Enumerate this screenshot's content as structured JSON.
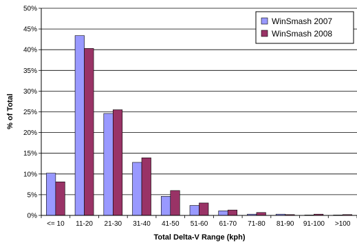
{
  "chart_data": {
    "type": "bar",
    "xlabel": "Total Delta-V Range (kph)",
    "ylabel": "% of Total",
    "ylim": [
      0,
      50
    ],
    "yticks": [
      "0%",
      "5%",
      "10%",
      "15%",
      "20%",
      "25%",
      "30%",
      "35%",
      "40%",
      "45%",
      "50%"
    ],
    "grid": true,
    "legend_position": "top-right",
    "categories": [
      "<= 10",
      "11-20",
      "21-30",
      "31-40",
      "41-50",
      "51-60",
      "61-70",
      "71-80",
      "81-90",
      "91-100",
      ">100"
    ],
    "series": [
      {
        "name": "WinSmash 2007",
        "color": "#9999ff",
        "values": [
          10.2,
          43.4,
          24.6,
          12.8,
          4.6,
          2.4,
          1.1,
          0.3,
          0.3,
          0.1,
          0.1
        ]
      },
      {
        "name": "WinSmash 2008",
        "color": "#993366",
        "values": [
          8.1,
          40.3,
          25.5,
          13.9,
          6.0,
          3.0,
          1.3,
          0.7,
          0.2,
          0.3,
          0.2
        ]
      }
    ]
  }
}
